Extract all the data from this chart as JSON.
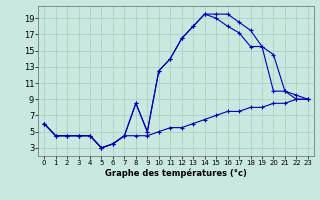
{
  "background_color": "#c8e8e0",
  "grid_color": "#aaccbb",
  "line_color": "#0000bb",
  "xlabel": "Graphe des températures (°c)",
  "yticks": [
    3,
    5,
    7,
    9,
    11,
    13,
    15,
    17,
    19
  ],
  "xticks": [
    0,
    1,
    2,
    3,
    4,
    5,
    6,
    7,
    8,
    9,
    10,
    11,
    12,
    13,
    14,
    15,
    16,
    17,
    18,
    19,
    20,
    21,
    22,
    23
  ],
  "xlim": [
    -0.5,
    23.5
  ],
  "ylim": [
    2.0,
    20.5
  ],
  "curve1_x": [
    0,
    1,
    2,
    3,
    4,
    5,
    6,
    7,
    8,
    9,
    10,
    11,
    12,
    13,
    14,
    15,
    16,
    17,
    18,
    19,
    20,
    21,
    22,
    23
  ],
  "curve1_y": [
    6.0,
    4.5,
    4.5,
    4.5,
    4.5,
    3.0,
    3.5,
    4.5,
    8.5,
    5.0,
    12.5,
    14.0,
    16.5,
    18.0,
    19.5,
    19.5,
    19.5,
    18.5,
    17.5,
    15.5,
    10.0,
    10.0,
    9.0,
    9.0
  ],
  "curve2_x": [
    0,
    1,
    2,
    3,
    4,
    5,
    6,
    7,
    8,
    9,
    10,
    11,
    12,
    13,
    14,
    15,
    16,
    17,
    18,
    19,
    20,
    21,
    22,
    23
  ],
  "curve2_y": [
    6.0,
    4.5,
    4.5,
    4.5,
    4.5,
    3.0,
    3.5,
    4.5,
    8.5,
    5.0,
    12.5,
    14.0,
    16.5,
    18.0,
    19.5,
    19.0,
    18.0,
    17.2,
    15.5,
    15.5,
    14.5,
    10.0,
    9.5,
    9.0
  ],
  "curve3_x": [
    0,
    1,
    2,
    3,
    4,
    5,
    6,
    7,
    8,
    9,
    10,
    11,
    12,
    13,
    14,
    15,
    16,
    17,
    18,
    19,
    20,
    21,
    22,
    23
  ],
  "curve3_y": [
    6.0,
    4.5,
    4.5,
    4.5,
    4.5,
    3.0,
    3.5,
    4.5,
    4.5,
    4.5,
    5.0,
    5.5,
    5.5,
    6.0,
    6.5,
    7.0,
    7.5,
    7.5,
    8.0,
    8.0,
    8.5,
    8.5,
    9.0,
    9.0
  ],
  "tick_fontsize_x": 5,
  "tick_fontsize_y": 6,
  "xlabel_fontsize": 6,
  "linewidth": 0.8,
  "markersize": 3
}
